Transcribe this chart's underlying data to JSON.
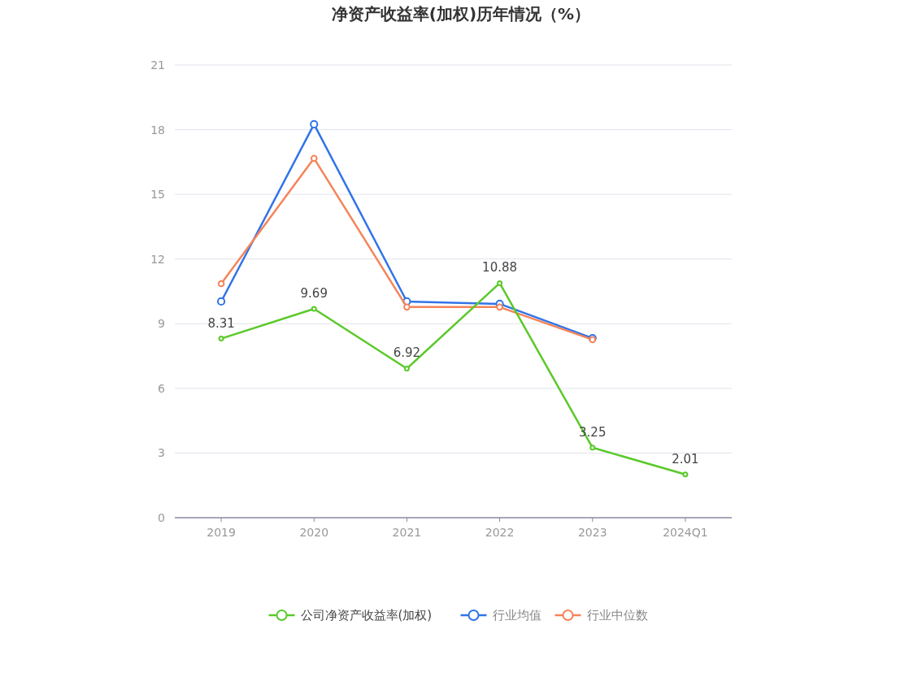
{
  "chart_data": {
    "type": "line",
    "title": "净资产收益率(加权)历年情况（%）",
    "categories": [
      "2019",
      "2020",
      "2021",
      "2022",
      "2023",
      "2024Q1"
    ],
    "series": [
      {
        "name": "公司净资产收益率(加权)",
        "color": "#5ac92a",
        "values": [
          8.31,
          9.69,
          6.92,
          10.88,
          3.25,
          2.01
        ],
        "value_labels": [
          "8.31",
          "9.69",
          "6.92",
          "10.88",
          "3.25",
          "2.01"
        ]
      },
      {
        "name": "行业均值",
        "color": "#3174e8",
        "values": [
          10.03,
          18.25,
          10.03,
          9.92,
          8.33,
          null
        ]
      },
      {
        "name": "行业中位数",
        "color": "#f5845a",
        "values": [
          10.86,
          16.67,
          9.77,
          9.77,
          8.26,
          null
        ]
      }
    ],
    "ylim": [
      0,
      21
    ],
    "yticks": [
      0,
      3,
      6,
      9,
      12,
      15,
      18,
      21
    ],
    "grid": "y",
    "legend": "bottom",
    "marker": "circle"
  }
}
